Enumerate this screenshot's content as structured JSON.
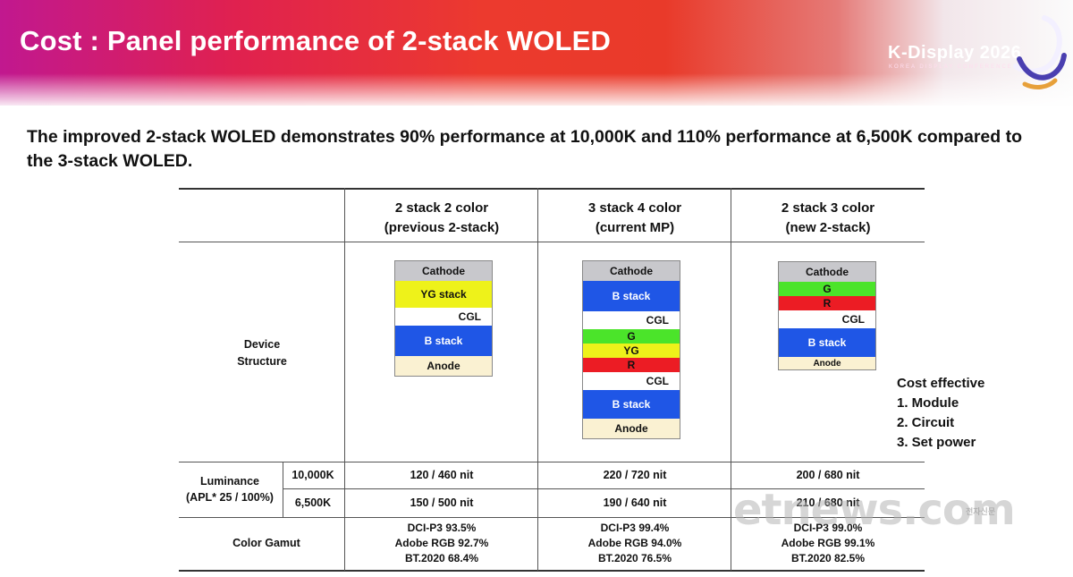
{
  "slide": {
    "title": "Cost : Panel performance of 2-stack WOLED",
    "logo_text": "K-Display 2026",
    "logo_subtext": "KOREA DISPLAY CONFERENCE",
    "subtitle": "The improved 2-stack WOLED demonstrates 90% performance at 10,000K and 110% performance at 6,500K compared to the 3-stack WOLED."
  },
  "table": {
    "columns": [
      {
        "line1": "2 stack 2 color",
        "line2": "(previous 2-stack)"
      },
      {
        "line1": "3 stack 4 color",
        "line2": "(current MP)"
      },
      {
        "line1": "2 stack 3 color",
        "line2": "(new 2-stack)"
      }
    ],
    "rows": {
      "device_line1": "Device",
      "device_line2": "Structure",
      "luminance_line1": "Luminance",
      "luminance_line2": "(APL* 25 / 100%)",
      "temp_1": "10,000K",
      "temp_2": "6,500K",
      "color_gamut": "Color Gamut"
    },
    "luminance_10000k": [
      "120 / 460 nit",
      "220 / 720 nit",
      "200 / 680 nit"
    ],
    "luminance_6500k": [
      "150 / 500 nit",
      "190 / 640 nit",
      "210 / 680 nit"
    ],
    "gamut": [
      [
        "DCI-P3 93.5%",
        "Adobe RGB 92.7%",
        "BT.2020 68.4%"
      ],
      [
        "DCI-P3 99.4%",
        "Adobe RGB 94.0%",
        "BT.2020 76.5%"
      ],
      [
        "DCI-P3 99.0%",
        "Adobe RGB 99.1%",
        "BT.2020 82.5%"
      ]
    ],
    "stacks": [
      [
        {
          "label": "Cathode",
          "color": "#c8c8cc"
        },
        {
          "label": "YG stack",
          "color": "#eef21a"
        },
        {
          "label": "CGL",
          "color": "#ffffff"
        },
        {
          "label": "B stack",
          "color": "#1f56e6"
        },
        {
          "label": "Anode",
          "color": "#faf1d2"
        }
      ],
      [
        {
          "label": "Cathode",
          "color": "#c8c8cc"
        },
        {
          "label": "B stack",
          "color": "#1f56e6"
        },
        {
          "label": "CGL",
          "color": "#ffffff"
        },
        {
          "label": "G",
          "color": "#4be42a"
        },
        {
          "label": "YG",
          "color": "#eef21a"
        },
        {
          "label": "R",
          "color": "#ec1c24"
        },
        {
          "label": "CGL",
          "color": "#ffffff"
        },
        {
          "label": "B stack",
          "color": "#1f56e6"
        },
        {
          "label": "Anode",
          "color": "#faf1d2"
        }
      ],
      [
        {
          "label": "Cathode",
          "color": "#c8c8cc"
        },
        {
          "label": "G",
          "color": "#4be42a"
        },
        {
          "label": "R",
          "color": "#ec1c24"
        },
        {
          "label": "CGL",
          "color": "#ffffff"
        },
        {
          "label": "B stack",
          "color": "#1f56e6"
        },
        {
          "label": "Anode",
          "color": "#faf1d2"
        }
      ]
    ],
    "note_title": "Cost effective",
    "note_items": [
      "1. Module",
      "2. Circuit",
      "3. Set power"
    ]
  },
  "watermark": {
    "text": "etnews.com",
    "small": "전자신문"
  }
}
